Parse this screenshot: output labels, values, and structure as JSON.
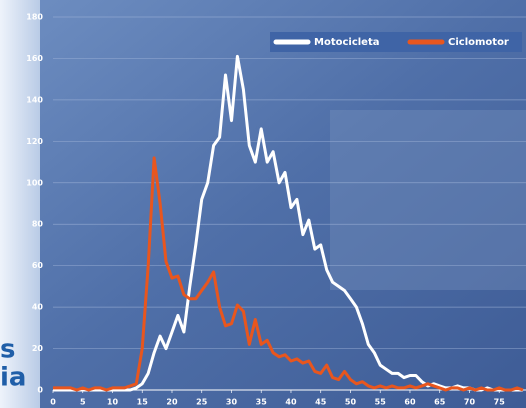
{
  "chart_data": {
    "type": "line",
    "annotations": [
      "s",
      "ia"
    ],
    "x": [
      0,
      1,
      2,
      3,
      4,
      5,
      6,
      7,
      8,
      9,
      10,
      11,
      12,
      13,
      14,
      15,
      16,
      17,
      18,
      19,
      20,
      21,
      22,
      23,
      24,
      25,
      26,
      27,
      28,
      29,
      30,
      31,
      32,
      33,
      34,
      35,
      36,
      37,
      38,
      39,
      40,
      41,
      42,
      43,
      44,
      45,
      46,
      47,
      48,
      49,
      50,
      51,
      52,
      53,
      54,
      55,
      56,
      57,
      58,
      59,
      60,
      61,
      62,
      63,
      64,
      65,
      66,
      67,
      68,
      69,
      70,
      71,
      72,
      73,
      74,
      75,
      76,
      77,
      78,
      79
    ],
    "series": [
      {
        "name": "Motocicleta",
        "color": "#ffffff",
        "values": [
          0,
          0,
          0,
          0,
          0,
          0,
          0,
          0,
          0,
          0,
          0,
          0,
          0,
          0,
          1,
          3,
          8,
          18,
          26,
          20,
          28,
          36,
          28,
          50,
          70,
          92,
          100,
          118,
          122,
          152,
          130,
          161,
          145,
          118,
          110,
          126,
          110,
          115,
          100,
          105,
          88,
          92,
          75,
          82,
          68,
          70,
          58,
          52,
          50,
          48,
          44,
          40,
          32,
          22,
          18,
          12,
          10,
          8,
          8,
          6,
          7,
          7,
          4,
          2,
          3,
          2,
          1,
          1,
          2,
          1,
          1,
          0,
          0,
          1,
          0,
          0,
          0,
          0,
          0,
          0
        ]
      },
      {
        "name": "Ciclomotor",
        "color": "#e8561e",
        "values": [
          1,
          1,
          1,
          1,
          0,
          1,
          0,
          1,
          1,
          0,
          1,
          1,
          1,
          2,
          3,
          20,
          60,
          112,
          90,
          62,
          54,
          55,
          46,
          44,
          44,
          48,
          52,
          57,
          40,
          31,
          32,
          41,
          38,
          22,
          34,
          22,
          24,
          18,
          16,
          17,
          14,
          15,
          13,
          14,
          9,
          8,
          12,
          6,
          5,
          9,
          5,
          3,
          4,
          2,
          1,
          2,
          1,
          2,
          1,
          1,
          2,
          1,
          2,
          3,
          2,
          1,
          0,
          1,
          1,
          0,
          1,
          0,
          1,
          0,
          0,
          1,
          0,
          0,
          1,
          0
        ]
      }
    ],
    "xlim": [
      0,
      79
    ],
    "xticks": [
      0,
      5,
      10,
      15,
      20,
      25,
      30,
      35,
      40,
      45,
      50,
      55,
      60,
      65,
      70,
      75
    ],
    "ylim": [
      0,
      180
    ],
    "yticks": [
      0,
      20,
      40,
      60,
      80,
      100,
      120,
      140,
      160,
      180
    ],
    "grid": true,
    "legend": "top-right"
  }
}
